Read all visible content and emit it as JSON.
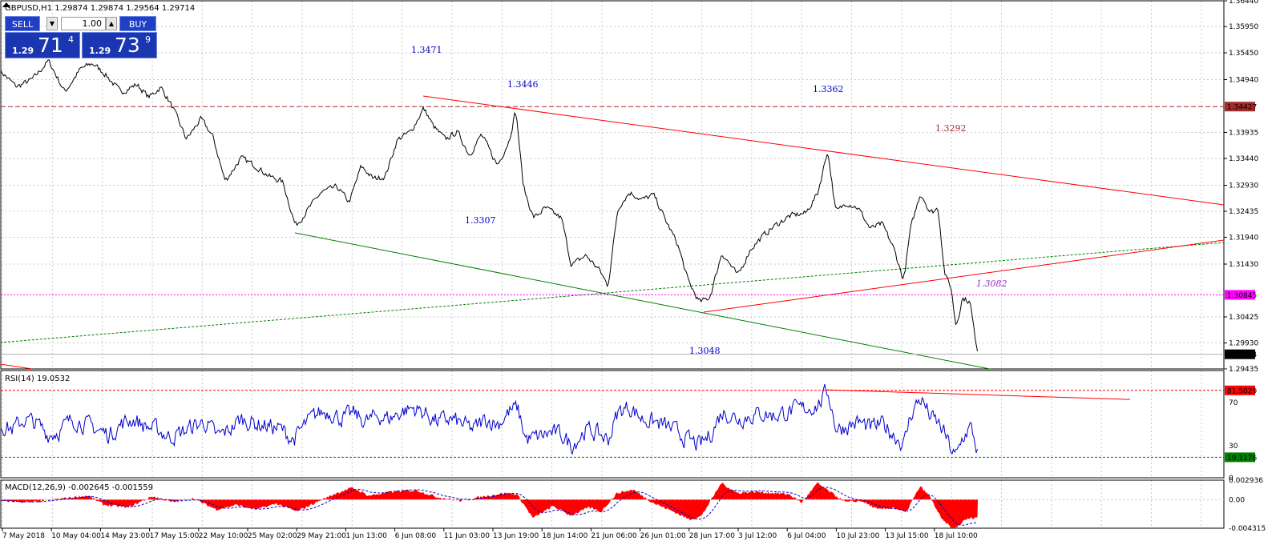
{
  "header": {
    "symbol_line": "GBPUSD,H1  1.29874 1.29874 1.29564 1.29714"
  },
  "trade_panel": {
    "sell_label": "SELL",
    "buy_label": "BUY",
    "lot_value": "1.00",
    "sell_price": {
      "small": "1.29",
      "big": "71",
      "sup": "4"
    },
    "buy_price": {
      "small": "1.29",
      "big": "73",
      "sup": "9"
    }
  },
  "colors": {
    "price": "#000000",
    "green_line": "#008000",
    "red_line": "#ff0000",
    "magenta": "#ff00ff",
    "rsi_line": "#0000cc",
    "macd_hist": "#ff0000",
    "label_blue": "#0000cc",
    "label_brown": "#a52a2a",
    "label_purple": "#9932cc",
    "axis_tag_dark": "#000000"
  },
  "chart_data": [
    {
      "type": "line",
      "title": "GBPUSD,H1",
      "ylim": [
        1.29435,
        1.3644
      ],
      "y_ticks": [
        "1.36440",
        "1.35950",
        "1.35450",
        "1.34940",
        "1.33935",
        "1.33440",
        "1.32930",
        "1.32435",
        "1.31940",
        "1.31430",
        "1.30425",
        "1.29930",
        "1.29435"
      ],
      "x_ticks": [
        "7 May 2018",
        "10 May 04:00",
        "14 May 23:00",
        "17 May 15:00",
        "22 May 10:00",
        "25 May 02:00",
        "29 May 21:00",
        "1 Jun 13:00",
        "6 Jun 08:00",
        "11 Jun 03:00",
        "13 Jun 19:00",
        "18 Jun 14:00",
        "21 Jun 06:00",
        "26 Jun 01:00",
        "28 Jun 17:00",
        "3 Jul 12:00",
        "6 Jul 04:00",
        "10 Jul 23:00",
        "13 Jul 15:00",
        "18 Jul 10:00"
      ],
      "current_price_tag": "1.29714",
      "hlines": [
        {
          "value": 1.34427,
          "label": "1.34427",
          "color": "#a52a2a",
          "style": "dashed"
        },
        {
          "value": 1.30845,
          "label": "1.30845",
          "color": "#ff00ff",
          "style": "dotted"
        }
      ],
      "level_labels": [
        {
          "text": "1.3471",
          "color": "#0000cc"
        },
        {
          "text": "1.3446",
          "color": "#0000cc"
        },
        {
          "text": "1.3362",
          "color": "#0000cc"
        },
        {
          "text": "1.3292",
          "color": "#a52a2a"
        },
        {
          "text": "1.3307",
          "color": "#0000cc"
        },
        {
          "text": "1.3082",
          "color": "#9932cc"
        },
        {
          "text": "1.3048",
          "color": "#0000cc"
        }
      ],
      "anchors": [
        [
          0,
          1.351
        ],
        [
          20,
          1.348
        ],
        [
          40,
          1.3495
        ],
        [
          60,
          1.353
        ],
        [
          80,
          1.347
        ],
        [
          100,
          1.3515
        ],
        [
          115,
          1.3525
        ],
        [
          130,
          1.3505
        ],
        [
          150,
          1.347
        ],
        [
          170,
          1.3485
        ],
        [
          185,
          1.346
        ],
        [
          200,
          1.348
        ],
        [
          215,
          1.344
        ],
        [
          232,
          1.338
        ],
        [
          250,
          1.342
        ],
        [
          265,
          1.3385
        ],
        [
          280,
          1.33
        ],
        [
          300,
          1.3345
        ],
        [
          318,
          1.333
        ],
        [
          335,
          1.331
        ],
        [
          352,
          1.33
        ],
        [
          368,
          1.3215
        ],
        [
          385,
          1.325
        ],
        [
          400,
          1.328
        ],
        [
          420,
          1.329
        ],
        [
          435,
          1.326
        ],
        [
          450,
          1.333
        ],
        [
          465,
          1.3305
        ],
        [
          480,
          1.331
        ],
        [
          495,
          1.338
        ],
        [
          512,
          1.3395
        ],
        [
          528,
          1.344
        ],
        [
          540,
          1.3405
        ],
        [
          555,
          1.338
        ],
        [
          570,
          1.3395
        ],
        [
          585,
          1.335
        ],
        [
          600,
          1.339
        ],
        [
          620,
          1.333
        ],
        [
          635,
          1.338
        ],
        [
          643,
          1.344
        ],
        [
          652,
          1.329
        ],
        [
          665,
          1.323
        ],
        [
          680,
          1.325
        ],
        [
          700,
          1.323
        ],
        [
          712,
          1.314
        ],
        [
          730,
          1.316
        ],
        [
          748,
          1.313
        ],
        [
          758,
          1.31
        ],
        [
          770,
          1.325
        ],
        [
          785,
          1.328
        ],
        [
          800,
          1.3265
        ],
        [
          815,
          1.3275
        ],
        [
          830,
          1.3225
        ],
        [
          845,
          1.318
        ],
        [
          858,
          1.311
        ],
        [
          872,
          1.307
        ],
        [
          885,
          1.308
        ],
        [
          900,
          1.3165
        ],
        [
          920,
          1.312
        ],
        [
          935,
          1.317
        ],
        [
          950,
          1.3195
        ],
        [
          965,
          1.3215
        ],
        [
          985,
          1.3235
        ],
        [
          1005,
          1.324
        ],
        [
          1020,
          1.328
        ],
        [
          1032,
          1.3362
        ],
        [
          1042,
          1.324
        ],
        [
          1055,
          1.326
        ],
        [
          1070,
          1.325
        ],
        [
          1085,
          1.321
        ],
        [
          1100,
          1.322
        ],
        [
          1115,
          1.317
        ],
        [
          1127,
          1.311
        ],
        [
          1135,
          1.321
        ],
        [
          1148,
          1.328
        ],
        [
          1160,
          1.324
        ],
        [
          1170,
          1.325
        ],
        [
          1178,
          1.312
        ],
        [
          1186,
          1.31
        ],
        [
          1192,
          1.302
        ],
        [
          1200,
          1.308
        ],
        [
          1210,
          1.307
        ],
        [
          1215,
          1.301
        ],
        [
          1220,
          1.29714
        ]
      ]
    },
    {
      "type": "line",
      "title": "RSI(14) 19.0532",
      "ylim": [
        0,
        100
      ],
      "y_ticks": [
        "70",
        "30",
        "0"
      ],
      "hlines": [
        {
          "value": 81.5029,
          "label": "81.5029",
          "color": "#ff0000"
        },
        {
          "value": 19.1176,
          "label": "19.1176",
          "color": "#008000"
        }
      ],
      "anchors": [
        [
          0,
          50
        ],
        [
          15,
          45
        ],
        [
          30,
          55
        ],
        [
          45,
          50
        ],
        [
          60,
          40
        ],
        [
          75,
          45
        ],
        [
          90,
          55
        ],
        [
          105,
          50
        ],
        [
          120,
          45
        ],
        [
          135,
          40
        ],
        [
          150,
          50
        ],
        [
          165,
          55
        ],
        [
          180,
          48
        ],
        [
          195,
          45
        ],
        [
          210,
          38
        ],
        [
          225,
          42
        ],
        [
          240,
          48
        ],
        [
          255,
          52
        ],
        [
          270,
          38
        ],
        [
          285,
          45
        ],
        [
          300,
          55
        ],
        [
          320,
          50
        ],
        [
          335,
          48
        ],
        [
          350,
          45
        ],
        [
          365,
          35
        ],
        [
          380,
          50
        ],
        [
          395,
          60
        ],
        [
          410,
          62
        ],
        [
          425,
          55
        ],
        [
          440,
          60
        ],
        [
          455,
          52
        ],
        [
          470,
          58
        ],
        [
          485,
          55
        ],
        [
          500,
          62
        ],
        [
          515,
          65
        ],
        [
          530,
          60
        ],
        [
          545,
          52
        ],
        [
          560,
          55
        ],
        [
          575,
          50
        ],
        [
          590,
          45
        ],
        [
          605,
          55
        ],
        [
          620,
          50
        ],
        [
          635,
          62
        ],
        [
          645,
          65
        ],
        [
          655,
          35
        ],
        [
          670,
          38
        ],
        [
          685,
          42
        ],
        [
          700,
          40
        ],
        [
          712,
          30
        ],
        [
          730,
          45
        ],
        [
          748,
          40
        ],
        [
          758,
          35
        ],
        [
          770,
          62
        ],
        [
          785,
          66
        ],
        [
          800,
          55
        ],
        [
          815,
          52
        ],
        [
          830,
          48
        ],
        [
          845,
          42
        ],
        [
          858,
          35
        ],
        [
          872,
          30
        ],
        [
          885,
          40
        ],
        [
          900,
          62
        ],
        [
          920,
          55
        ],
        [
          935,
          58
        ],
        [
          950,
          60
        ],
        [
          965,
          58
        ],
        [
          985,
          62
        ],
        [
          1005,
          65
        ],
        [
          1020,
          68
        ],
        [
          1032,
          82
        ],
        [
          1042,
          45
        ],
        [
          1055,
          48
        ],
        [
          1070,
          52
        ],
        [
          1085,
          46
        ],
        [
          1100,
          50
        ],
        [
          1115,
          40
        ],
        [
          1127,
          30
        ],
        [
          1135,
          60
        ],
        [
          1148,
          75
        ],
        [
          1160,
          56
        ],
        [
          1170,
          50
        ],
        [
          1178,
          40
        ],
        [
          1186,
          25
        ],
        [
          1192,
          18
        ],
        [
          1200,
          38
        ],
        [
          1210,
          48
        ],
        [
          1215,
          35
        ],
        [
          1220,
          19
        ]
      ]
    },
    {
      "type": "bar",
      "title": "MACD(12,26,9) -0.002645 -0.001559",
      "ylim": [
        -0.004315,
        0.002936
      ],
      "y_ticks": [
        "0.002936",
        "0.00",
        "-0.004315"
      ],
      "anchors": [
        [
          0,
          -0.0002
        ],
        [
          40,
          -0.0004
        ],
        [
          80,
          0.0002
        ],
        [
          110,
          0.0006
        ],
        [
          130,
          -0.0008
        ],
        [
          160,
          -0.0012
        ],
        [
          190,
          0.0005
        ],
        [
          215,
          -0.0004
        ],
        [
          240,
          0.0002
        ],
        [
          270,
          -0.0015
        ],
        [
          295,
          -0.0008
        ],
        [
          320,
          -0.0015
        ],
        [
          345,
          -0.0006
        ],
        [
          370,
          -0.0018
        ],
        [
          395,
          -0.0004
        ],
        [
          420,
          0.001
        ],
        [
          440,
          0.0018
        ],
        [
          460,
          0.0006
        ],
        [
          490,
          0.0012
        ],
        [
          520,
          0.0014
        ],
        [
          545,
          0.0004
        ],
        [
          575,
          -0.0002
        ],
        [
          600,
          0.0004
        ],
        [
          630,
          0.001
        ],
        [
          645,
          0.0008
        ],
        [
          665,
          -0.0028
        ],
        [
          690,
          -0.001
        ],
        [
          712,
          -0.0024
        ],
        [
          735,
          -0.0012
        ],
        [
          750,
          -0.0018
        ],
        [
          770,
          0.001
        ],
        [
          790,
          0.0015
        ],
        [
          815,
          -0.0005
        ],
        [
          840,
          -0.0018
        ],
        [
          860,
          -0.003
        ],
        [
          875,
          -0.0025
        ],
        [
          900,
          0.0025
        ],
        [
          920,
          0.001
        ],
        [
          940,
          0.0012
        ],
        [
          965,
          0.001
        ],
        [
          985,
          0.0008
        ],
        [
          1000,
          -0.0005
        ],
        [
          1020,
          0.0025
        ],
        [
          1035,
          0.0012
        ],
        [
          1055,
          -0.0004
        ],
        [
          1075,
          -0.0002
        ],
        [
          1095,
          -0.0015
        ],
        [
          1115,
          -0.0012
        ],
        [
          1130,
          -0.002
        ],
        [
          1148,
          0.002
        ],
        [
          1160,
          0.0005
        ],
        [
          1175,
          -0.003
        ],
        [
          1190,
          -0.0045
        ],
        [
          1205,
          -0.003
        ],
        [
          1220,
          -0.0026
        ]
      ]
    }
  ]
}
